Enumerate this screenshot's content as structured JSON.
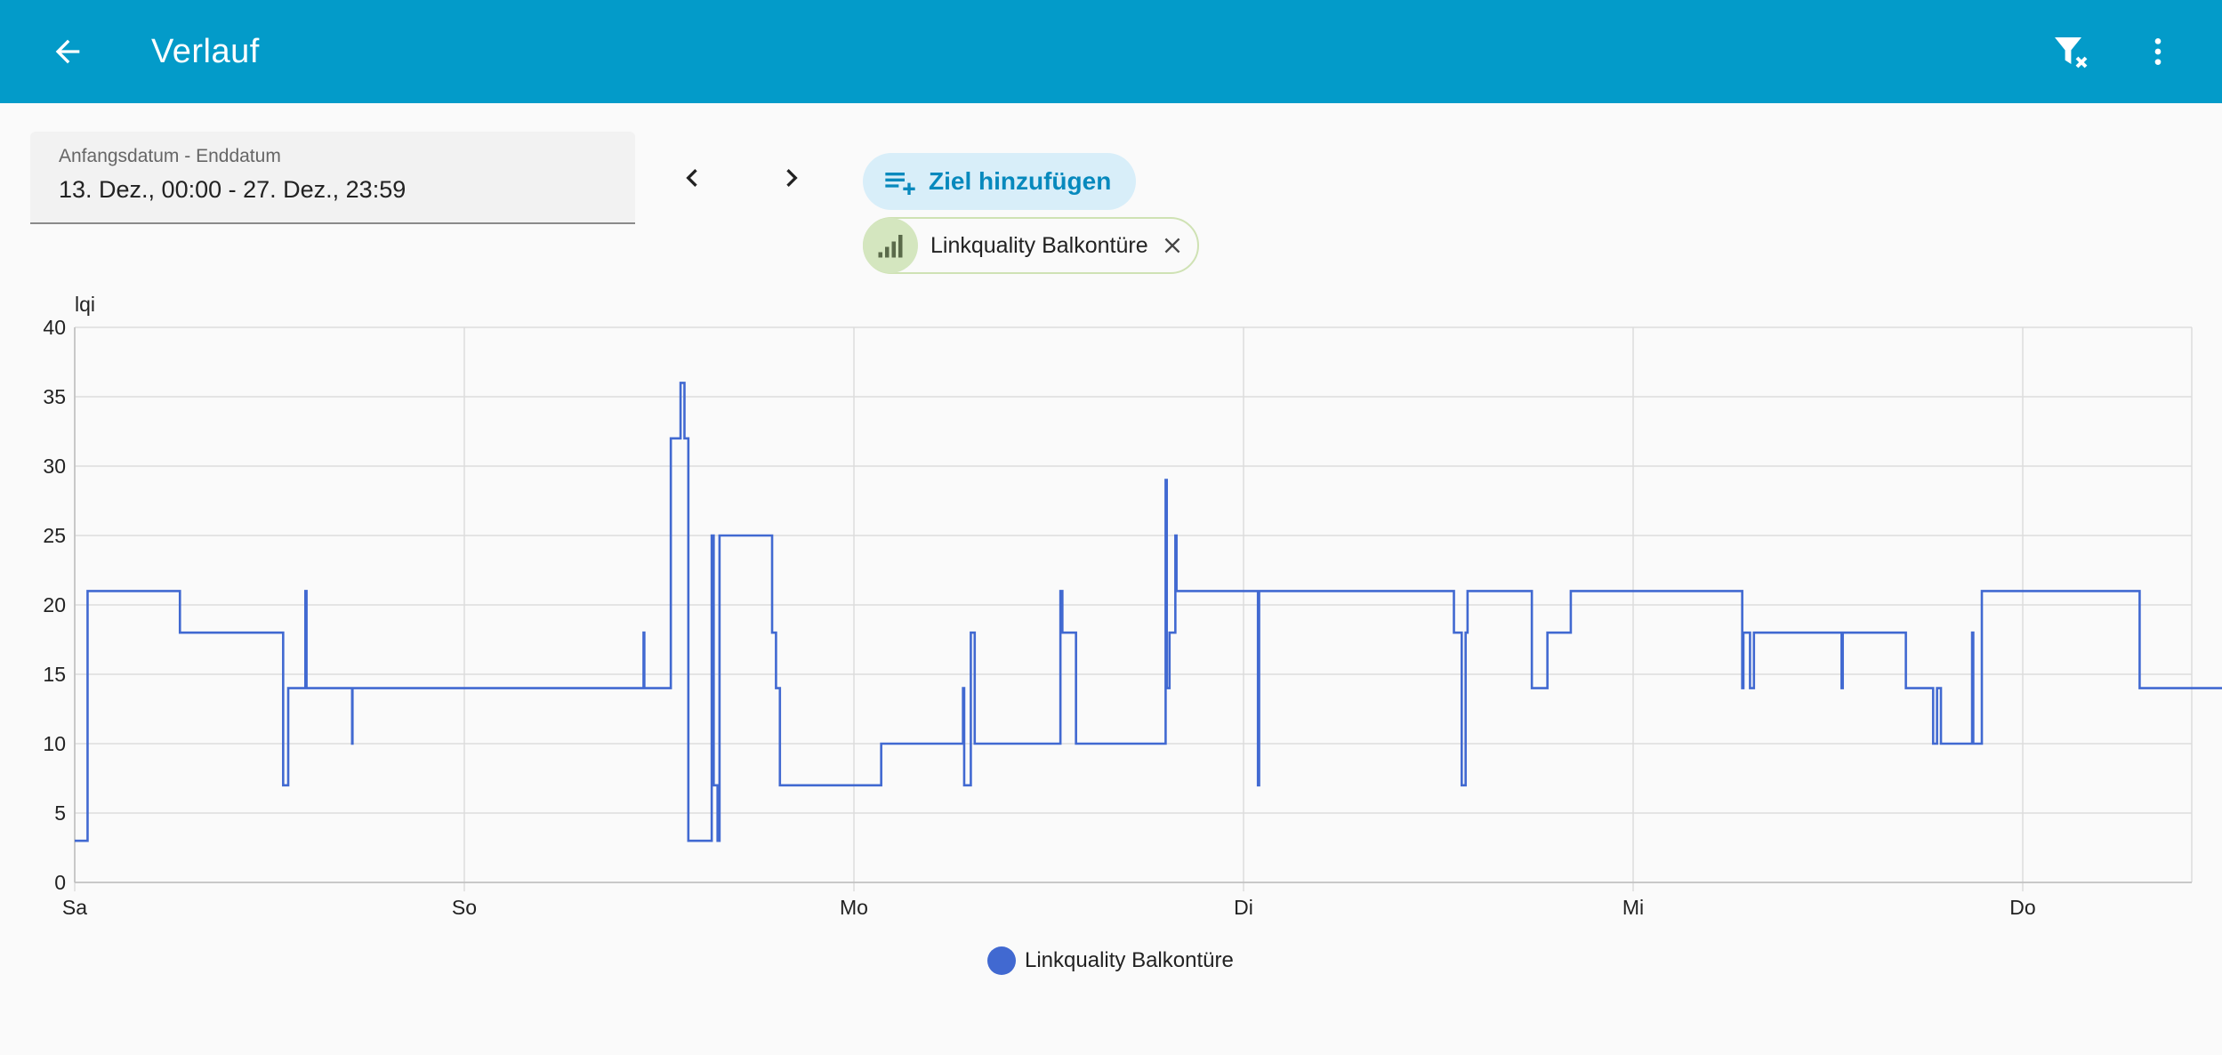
{
  "header": {
    "title": "Verlauf",
    "back_icon": "arrow-left-icon",
    "filter_clear_icon": "filter-remove-icon",
    "more_icon": "dots-vertical-icon",
    "background_color": "#039bc9"
  },
  "date_range": {
    "label": "Anfangsdatum - Enddatum",
    "value": "13. Dez., 00:00 - 27. Dez., 23:59"
  },
  "navigation": {
    "prev_icon": "chevron-left-icon",
    "next_icon": "chevron-right-icon"
  },
  "targets": {
    "add_label": "Ziel hinzufügen",
    "add_icon": "playlist-plus-icon",
    "entities": [
      {
        "label": "Linkquality Balkontüre",
        "icon": "signal-bars-icon",
        "remove_icon": "close-icon"
      }
    ]
  },
  "chart_data": {
    "type": "line",
    "ylabel": "lqi",
    "ylim": [
      0,
      40
    ],
    "yticks": [
      0,
      5,
      10,
      15,
      20,
      25,
      30,
      35,
      40
    ],
    "xlim": [
      0,
      6.53
    ],
    "x_tick_labels": [
      "Sa",
      "So",
      "Mo",
      "Di",
      "Mi",
      "Do"
    ],
    "x_tick_positions": [
      0,
      1,
      2,
      3,
      4,
      5
    ],
    "grid": true,
    "legend_position": "bottom",
    "series": [
      {
        "name": "Linkquality Balkontüre",
        "color": "#4169d1",
        "step": true,
        "points": [
          [
            0,
            3
          ],
          [
            0.033,
            21
          ],
          [
            0.27,
            18
          ],
          [
            0.535,
            7
          ],
          [
            0.548,
            14
          ],
          [
            0.592,
            21
          ],
          [
            0.595,
            14
          ],
          [
            0.712,
            10
          ],
          [
            0.713,
            14
          ],
          [
            1.46,
            18
          ],
          [
            1.462,
            14
          ],
          [
            1.53,
            32
          ],
          [
            1.555,
            36
          ],
          [
            1.565,
            32
          ],
          [
            1.575,
            3
          ],
          [
            1.635,
            25
          ],
          [
            1.64,
            7
          ],
          [
            1.65,
            3
          ],
          [
            1.655,
            25
          ],
          [
            1.79,
            18
          ],
          [
            1.8,
            14
          ],
          [
            1.81,
            7
          ],
          [
            2.07,
            10
          ],
          [
            2.28,
            14
          ],
          [
            2.283,
            7
          ],
          [
            2.3,
            18
          ],
          [
            2.31,
            10
          ],
          [
            2.53,
            21
          ],
          [
            2.535,
            18
          ],
          [
            2.57,
            10
          ],
          [
            2.8,
            29
          ],
          [
            2.803,
            14
          ],
          [
            2.81,
            18
          ],
          [
            2.825,
            25
          ],
          [
            2.828,
            21
          ],
          [
            3.037,
            7
          ],
          [
            3.04,
            21
          ],
          [
            3.54,
            18
          ],
          [
            3.56,
            7
          ],
          [
            3.57,
            18
          ],
          [
            3.575,
            21
          ],
          [
            3.74,
            14
          ],
          [
            3.78,
            18
          ],
          [
            3.84,
            21
          ],
          [
            4.28,
            14
          ],
          [
            4.283,
            18
          ],
          [
            4.3,
            14
          ],
          [
            4.31,
            18
          ],
          [
            4.535,
            14
          ],
          [
            4.538,
            18
          ],
          [
            4.7,
            14
          ],
          [
            4.77,
            10
          ],
          [
            4.78,
            14
          ],
          [
            4.79,
            10
          ],
          [
            4.87,
            18
          ],
          [
            4.873,
            10
          ],
          [
            4.895,
            21
          ],
          [
            5.3,
            14
          ],
          [
            5.43,
            14
          ]
        ]
      }
    ]
  }
}
